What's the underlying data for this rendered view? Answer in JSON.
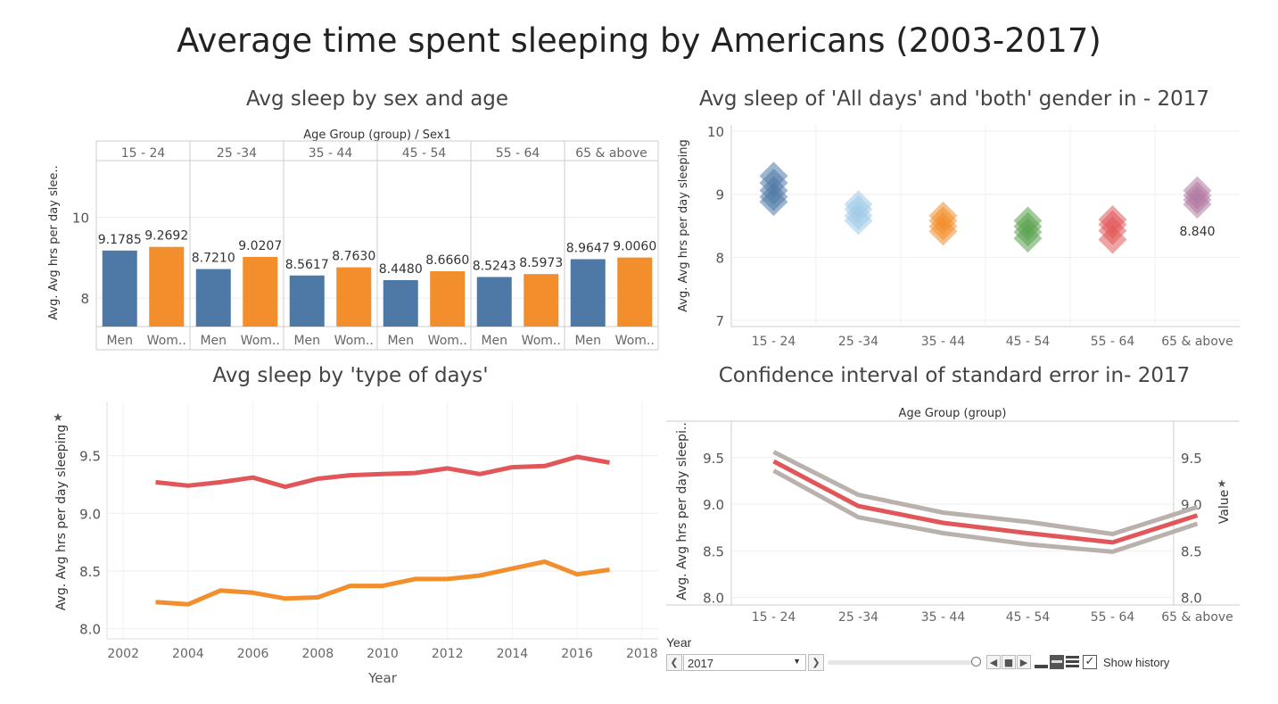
{
  "title": "Average time spent sleeping by Americans (2003-2017)",
  "colors": {
    "men": "#4e79a7",
    "women": "#f28e2b",
    "red": "#e15759",
    "grey": "#bab0ac"
  },
  "chart_data": [
    {
      "id": "sex_age",
      "type": "bar",
      "title": "Avg sleep by sex and age",
      "header": "Age Group (group)  /  Sex1",
      "ylabel": "Avg. Avg hrs per day slee..",
      "ylim": [
        7.3,
        11.4
      ],
      "yticks": [
        "8",
        "10"
      ],
      "groups": [
        "15 - 24",
        "25 -34",
        "35 - 44",
        "45 - 54",
        "55 - 64",
        "65 & above"
      ],
      "sex_labels": [
        "Men",
        "Wom.."
      ],
      "series": [
        {
          "name": "Men",
          "values": [
            9.1785,
            8.721,
            8.5617,
            8.448,
            8.5243,
            8.9647
          ]
        },
        {
          "name": "Wom..",
          "values": [
            9.2692,
            9.0207,
            8.763,
            8.666,
            8.5973,
            9.006
          ]
        }
      ],
      "labels": [
        [
          "9.1785",
          "9.2692"
        ],
        [
          "8.7210",
          "9.0207"
        ],
        [
          "8.5617",
          "8.7630"
        ],
        [
          "8.4480",
          "8.6660"
        ],
        [
          "8.5243",
          "8.5973"
        ],
        [
          "8.9647",
          "9.0060"
        ]
      ]
    },
    {
      "id": "all_days",
      "type": "scatter",
      "title": "Avg sleep of 'All days' and 'both' gender in - 2017",
      "ylabel": "Avg. Avg hrs per day sleeping",
      "ylim": [
        6.9,
        10.1
      ],
      "yticks": [
        "10",
        "9",
        "8",
        "7"
      ],
      "categories": [
        "15 - 24",
        "25 -34",
        "35 - 44",
        "45 - 54",
        "55 - 64",
        "65 & above"
      ],
      "points": [
        {
          "values": [
            9.29,
            9.18,
            9.06,
            8.96,
            8.88
          ],
          "color": "#4e79a7"
        },
        {
          "values": [
            8.84,
            8.76,
            8.66,
            8.58
          ],
          "color": "#a0cbe8"
        },
        {
          "values": [
            8.66,
            8.58,
            8.49,
            8.41
          ],
          "color": "#f28e2b"
        },
        {
          "values": [
            8.58,
            8.49,
            8.4,
            8.3
          ],
          "color": "#59a14f"
        },
        {
          "values": [
            8.6,
            8.52,
            8.42,
            8.28
          ],
          "color": "#e15759"
        },
        {
          "values": [
            9.06,
            8.98,
            8.91,
            8.84
          ],
          "color": "#b07aa1"
        }
      ],
      "annotation": "8.840"
    },
    {
      "id": "type_days",
      "type": "line",
      "title": "Avg sleep by 'type of days'",
      "xlabel": "Year",
      "ylabel": "Avg. Avg hrs per day sleeping",
      "xlim": [
        2001.5,
        2018.5
      ],
      "ylim": [
        7.91,
        9.97
      ],
      "xticks": [
        "2002",
        "2004",
        "2006",
        "2008",
        "2010",
        "2012",
        "2014",
        "2016",
        "2018"
      ],
      "yticks": [
        "9.5",
        "9.0",
        "8.5",
        "8.0"
      ],
      "x": [
        2003,
        2004,
        2005,
        2006,
        2007,
        2008,
        2009,
        2010,
        2011,
        2012,
        2013,
        2014,
        2015,
        2016,
        2017
      ],
      "series": [
        {
          "color": "#e15759",
          "values": [
            9.27,
            9.24,
            9.27,
            9.31,
            9.23,
            9.3,
            9.33,
            9.34,
            9.35,
            9.39,
            9.34,
            9.4,
            9.41,
            9.49,
            9.44
          ]
        },
        {
          "color": "#f28e2b",
          "values": [
            8.23,
            8.21,
            8.33,
            8.31,
            8.26,
            8.27,
            8.37,
            8.37,
            8.43,
            8.43,
            8.46,
            8.52,
            8.58,
            8.47,
            8.51
          ]
        }
      ]
    },
    {
      "id": "confidence",
      "type": "line",
      "title": "Confidence interval of standard error in- 2017",
      "header": "Age Group (group)",
      "ylabel": "Avg. Avg hrs per day sleepi..",
      "ylabel_right": "Value",
      "ylim": [
        7.92,
        9.89
      ],
      "yticks": [
        "9.5",
        "9.0",
        "8.5",
        "8.0"
      ],
      "categories": [
        "15 - 24",
        "25 -34",
        "35 - 44",
        "45 - 54",
        "55 - 64",
        "65 & above"
      ],
      "series": [
        {
          "color": "#bab0ac",
          "values": [
            9.56,
            9.1,
            8.91,
            8.81,
            8.68,
            8.97
          ]
        },
        {
          "color": "#e15759",
          "values": [
            9.46,
            8.98,
            8.8,
            8.69,
            8.59,
            8.88
          ]
        },
        {
          "color": "#bab0ac",
          "values": [
            9.36,
            8.86,
            8.69,
            8.57,
            8.49,
            8.79
          ]
        }
      ]
    }
  ],
  "controls": {
    "year_label": "Year",
    "year_value": "2017",
    "show_history": "Show history",
    "show_history_checked": true
  }
}
